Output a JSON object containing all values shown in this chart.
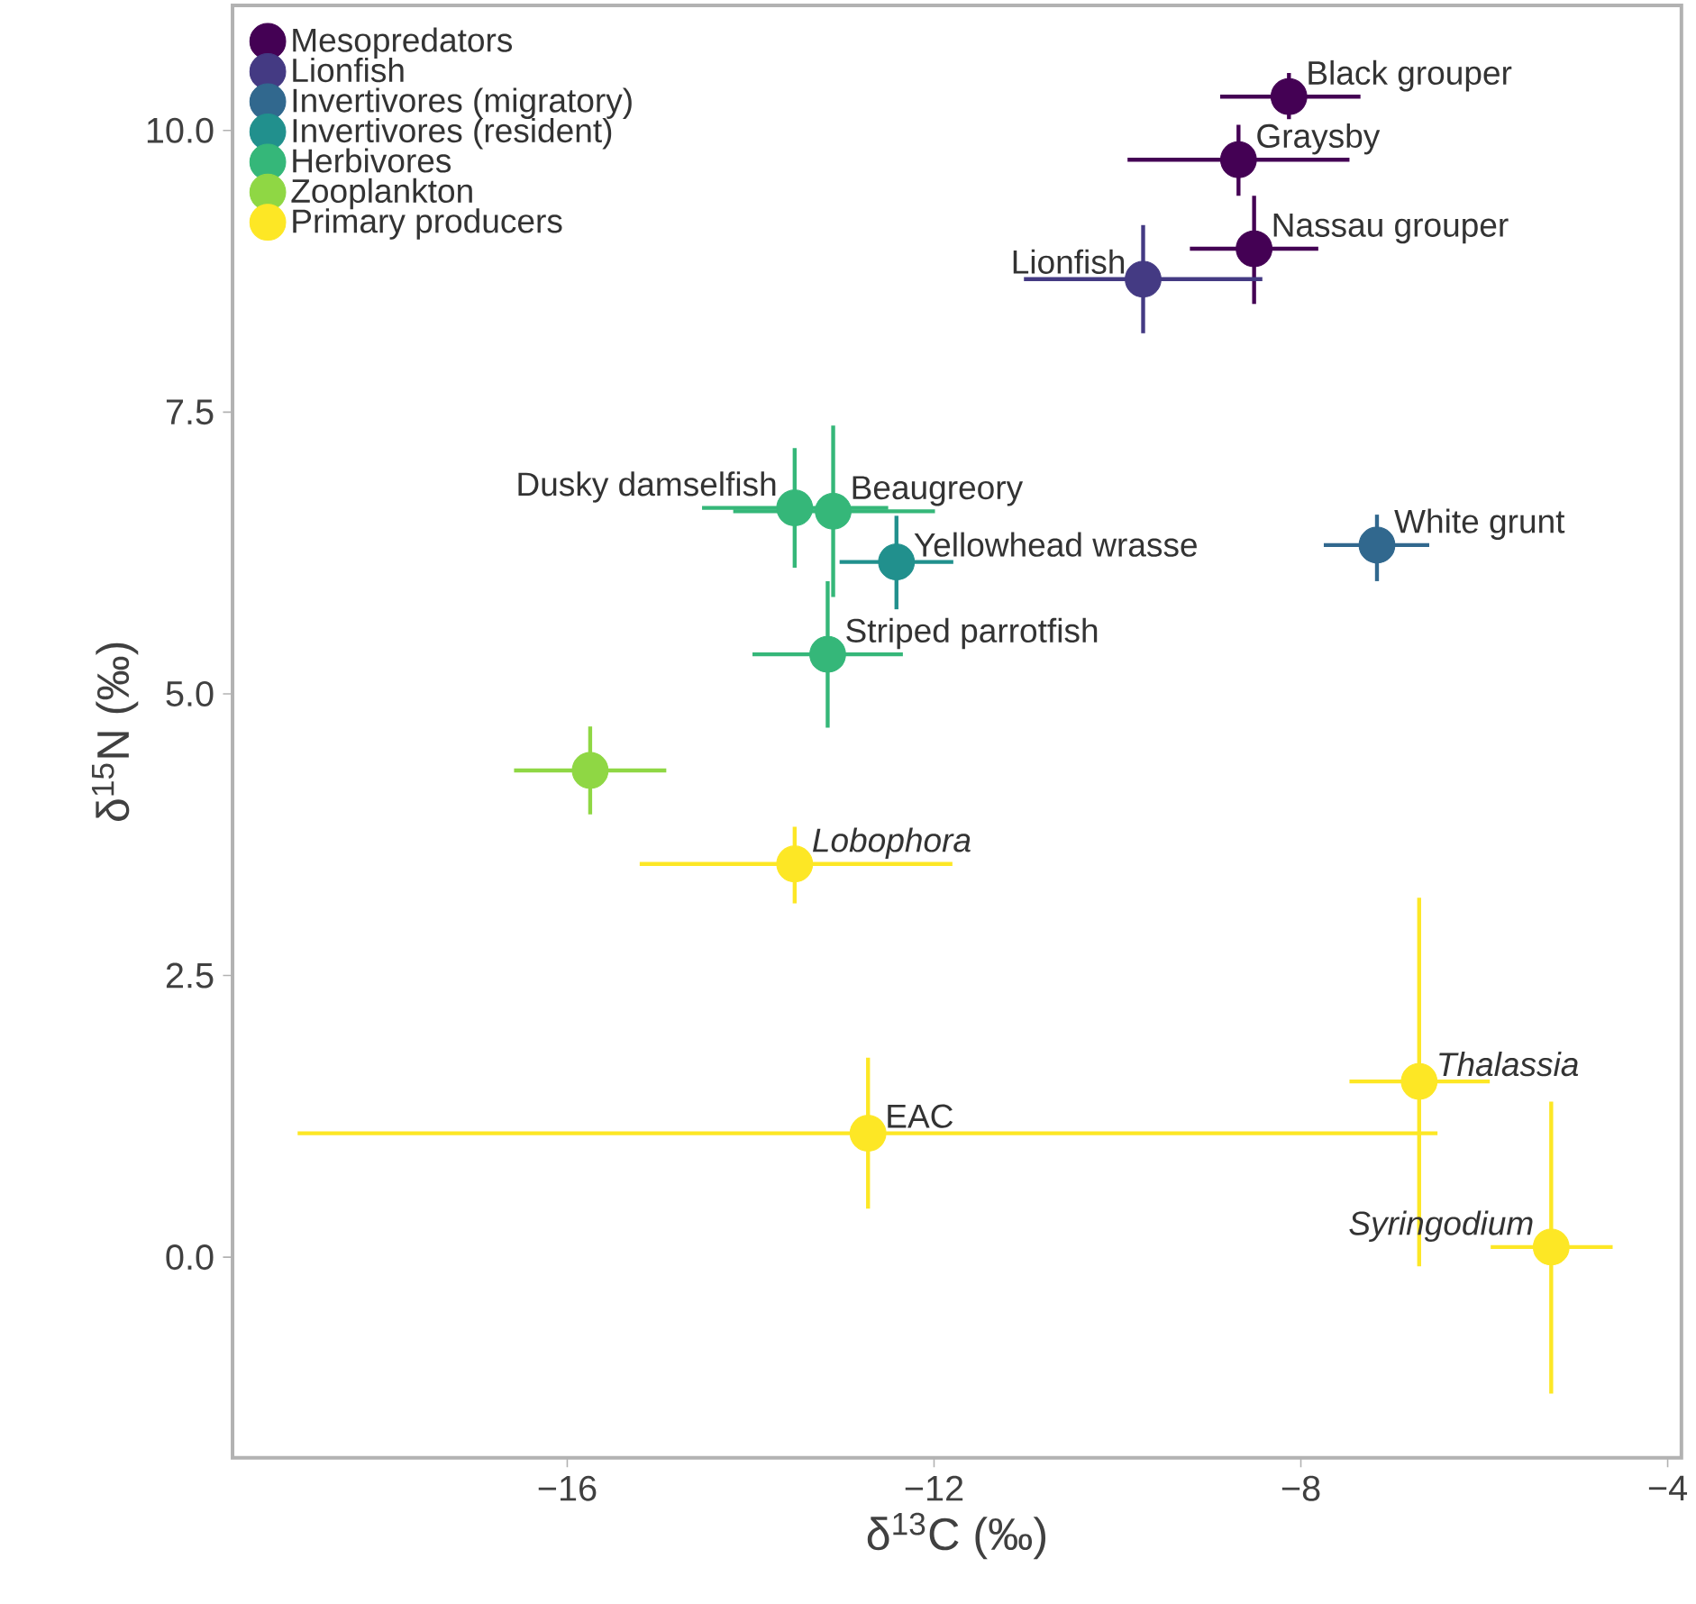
{
  "chart_data": {
    "type": "scatter",
    "xlabel": "δ$^{13}$C (‰)",
    "ylabel": "δ$^{15}$N (‰)",
    "xlim": [
      -19.65,
      -3.85
    ],
    "ylim": [
      -1.78,
      11.11
    ],
    "xticks": [
      {
        "value": -16,
        "label": "−16"
      },
      {
        "value": -12,
        "label": "−12"
      },
      {
        "value": -8,
        "label": "−8"
      },
      {
        "value": -4,
        "label": "−4"
      }
    ],
    "yticks": [
      {
        "value": 0,
        "label": "0.0"
      },
      {
        "value": 2.5,
        "label": "2.5"
      },
      {
        "value": 5,
        "label": "5.0"
      },
      {
        "value": 7.5,
        "label": "7.5"
      },
      {
        "value": 10,
        "label": "10.0"
      }
    ],
    "grid": false,
    "legend": "top left",
    "marker": "circle",
    "series": [
      {
        "name": "Mesopredators",
        "color": "#440154",
        "x": [
          -8.13,
          -8.68,
          -8.51
        ],
        "values": [
          10.3,
          9.74,
          8.95
        ],
        "xerrors": [
          [
            -8.88,
            -7.35
          ],
          [
            -9.89,
            -7.47
          ],
          [
            -9.21,
            -7.81
          ]
        ],
        "errors": [
          [
            10.1,
            10.51
          ],
          [
            9.42,
            10.05
          ],
          [
            8.46,
            9.42
          ]
        ]
      },
      {
        "name": "Lionfish",
        "color": "#443a83",
        "x": [
          -9.72
        ],
        "values": [
          8.68
        ],
        "xerrors": [
          [
            -11.02,
            -8.42
          ]
        ],
        "errors": [
          [
            8.2,
            9.16
          ]
        ]
      },
      {
        "name": "Invertivores (migratory)",
        "color": "#31688e",
        "x": [
          -7.17
        ],
        "values": [
          6.32
        ],
        "xerrors": [
          [
            -7.75,
            -6.6
          ]
        ],
        "errors": [
          [
            6.0,
            6.59
          ]
        ]
      },
      {
        "name": "Invertivores (resident)",
        "color": "#21908d",
        "x": [
          -12.41
        ],
        "values": [
          6.17
        ],
        "xerrors": [
          [
            -13.03,
            -11.79
          ]
        ],
        "errors": [
          [
            5.75,
            6.58
          ]
        ]
      },
      {
        "name": "Herbivores",
        "color": "#35b779",
        "x": [
          -13.52,
          -13.1,
          -13.16
        ],
        "values": [
          6.65,
          6.62,
          5.35
        ],
        "xerrors": [
          [
            -14.53,
            -12.5
          ],
          [
            -14.19,
            -11.99
          ],
          [
            -13.98,
            -12.34
          ]
        ],
        "errors": [
          [
            6.12,
            7.18
          ],
          [
            5.86,
            7.38
          ],
          [
            4.7,
            6.0
          ]
        ]
      },
      {
        "name": "Zooplankton",
        "color": "#8fd744",
        "x": [
          -15.75
        ],
        "values": [
          4.32
        ],
        "xerrors": [
          [
            -16.58,
            -14.92
          ]
        ],
        "errors": [
          [
            3.93,
            4.71
          ]
        ]
      },
      {
        "name": "Primary producers",
        "color": "#fde725",
        "x": [
          -13.52,
          -12.72,
          -6.71,
          -5.27
        ],
        "values": [
          3.49,
          1.1,
          1.56,
          0.09
        ],
        "xerrors": [
          [
            -15.21,
            -11.8
          ],
          [
            -18.94,
            -6.51
          ],
          [
            -7.47,
            -5.94
          ],
          [
            -5.93,
            -4.6
          ]
        ],
        "errors": [
          [
            3.14,
            3.82
          ],
          [
            0.43,
            1.77
          ],
          [
            -0.08,
            3.19
          ],
          [
            -1.21,
            1.38
          ]
        ]
      }
    ],
    "annotations": [
      {
        "text": "Black grouper",
        "x": -8.13,
        "y": 10.3
      },
      {
        "text": "Graysby",
        "x": -8.68,
        "y": 9.74
      },
      {
        "text": "Nassau grouper",
        "x": -8.51,
        "y": 8.95
      },
      {
        "text": "Lionfish",
        "x": -9.72,
        "y": 8.68
      },
      {
        "text": "White grunt",
        "x": -7.17,
        "y": 6.32
      },
      {
        "text": "Yellowhead wrasse",
        "x": -12.41,
        "y": 6.17
      },
      {
        "text": "Dusky damselfish",
        "x": -13.52,
        "y": 6.65
      },
      {
        "text": "Beaugreory",
        "x": -13.1,
        "y": 6.62
      },
      {
        "text": "Striped parrotfish",
        "x": -13.16,
        "y": 5.35
      },
      {
        "text": "*Lobophora*",
        "x": -13.52,
        "y": 3.49
      },
      {
        "text": "EAC",
        "x": -12.72,
        "y": 1.1
      },
      {
        "text": "*Thalassia*",
        "x": -6.71,
        "y": 1.56
      },
      {
        "text": "*Syringodium*",
        "x": -5.27,
        "y": 0.09
      }
    ]
  }
}
